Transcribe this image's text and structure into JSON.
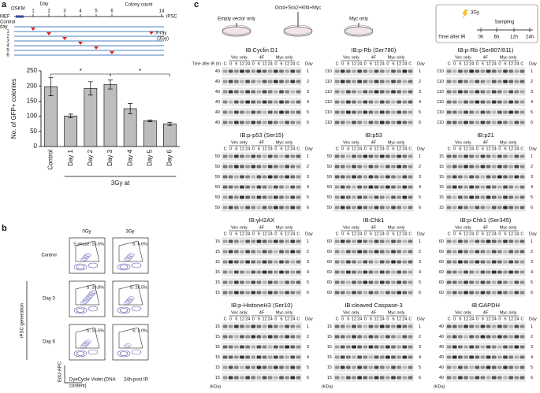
{
  "figure": {
    "panel_labels": [
      "a",
      "b",
      "c"
    ],
    "timeline": {
      "mef": "MEF",
      "day": "Day",
      "oskm": "OSKM",
      "days": [
        "1",
        "2",
        "3",
        "4",
        "5",
        "6",
        "14"
      ],
      "colony_count": "Colony count",
      "ipsc": "iPSC",
      "control_day": [
        "Control",
        "day"
      ],
      "rows": [
        "1",
        "2",
        "3",
        "4",
        "5",
        "6"
      ],
      "xray": [
        "X-ray",
        "(3Gy)"
      ]
    },
    "flow": {
      "columns": [
        "0Gy",
        "3Gy"
      ],
      "rows": [
        "Control",
        "Day 3",
        "Day 6"
      ],
      "group_label": "iPSC generation",
      "gates": [
        [
          "S phase: 15.5%",
          "S: 6.6%"
        ],
        [
          "S: 29.8%",
          "S: 20.5%"
        ],
        [
          "S: 15.5%",
          "S: 3.0%"
        ]
      ],
      "y_label": "EdU-APC",
      "x_label": [
        "DyeCycle Violet (DNA",
        "content)"
      ],
      "note": "24h-post IR"
    },
    "scheme": {
      "vectors": [
        "Empty vector only",
        "Oct4+Sox2+Klf4+Myc",
        "Myc only"
      ],
      "dose": "3Gy",
      "sampling": "Sampling",
      "time_label": "Time after IR",
      "times": [
        "0h",
        "6h",
        "12h",
        "24h"
      ]
    },
    "blots": {
      "groups": [
        "Vec only",
        "4F",
        "Myc only"
      ],
      "lanes": [
        "C",
        "0",
        "6",
        "12",
        "24",
        "0",
        "6",
        "12",
        "24",
        "0",
        "6",
        "12",
        "24",
        "C"
      ],
      "time_label": "Time after IR (h)",
      "day": "Day",
      "rows": [
        "1",
        "2",
        "3",
        "4",
        "5",
        "6"
      ],
      "unit": "(KDa)",
      "panels": [
        {
          "title": "IB:Cyclin D1",
          "markers": [
            "40",
            "40",
            "40",
            "40",
            "40",
            "40"
          ]
        },
        {
          "title": "IB:p-Rb (Ser780)",
          "markers": [
            "110",
            "110",
            "110",
            "110",
            "110",
            "110"
          ]
        },
        {
          "title": "IB:p-Rb (Ser807/811)",
          "markers": [
            "110",
            "110",
            "110",
            "110",
            "110",
            "110"
          ]
        },
        {
          "title": "IB:p-p53 (Ser15)",
          "markers": [
            "50",
            "50",
            "50",
            "50",
            "50",
            "50"
          ]
        },
        {
          "title": "IB:p53",
          "markers": [
            "50",
            "50",
            "50",
            "50",
            "50",
            "50"
          ]
        },
        {
          "title": "IB:p21",
          "markers": [
            "15",
            "15",
            "15",
            "15",
            "15",
            "15"
          ]
        },
        {
          "title": "IB:γH2AX",
          "markers": [
            "15",
            "15",
            "15",
            "15",
            "15",
            "15"
          ]
        },
        {
          "title": "IB:Chk1",
          "markers": [
            "60",
            "60",
            "60",
            "60",
            "60",
            "60"
          ]
        },
        {
          "title": "IB:p-Chk1 (Ser345)",
          "markers": [
            "60",
            "60",
            "60",
            "60",
            "60",
            "60"
          ]
        },
        {
          "title": "IB:p-HistoneH3 (Ser10)",
          "markers": [
            "15",
            "15",
            "15",
            "15",
            "15",
            "15"
          ]
        },
        {
          "title": "IB:cleaved Caspase-3",
          "markers": [
            "15",
            "15",
            "15",
            "15",
            "15",
            "15"
          ]
        },
        {
          "title": "IB:GAPDH",
          "markers": [
            "40",
            "40",
            "40",
            "40",
            "40",
            "40"
          ]
        }
      ]
    }
  },
  "chart_data": {
    "type": "bar",
    "ylabel": "No. of GFP+ colonies",
    "xlabel": "3Gy at",
    "categories": [
      "Control",
      "Day 1",
      "Day 2",
      "Day 3",
      "Day 4",
      "Day 5",
      "Day 6"
    ],
    "values": [
      198,
      101,
      192,
      205,
      125,
      85,
      75
    ],
    "errors": [
      30,
      6,
      22,
      15,
      17,
      3,
      5
    ],
    "color": "#bdbdbd",
    "ylim": [
      0,
      250
    ],
    "yticks": [
      0,
      50,
      100,
      150,
      200,
      250
    ],
    "annotations": [
      "*",
      "*"
    ]
  }
}
